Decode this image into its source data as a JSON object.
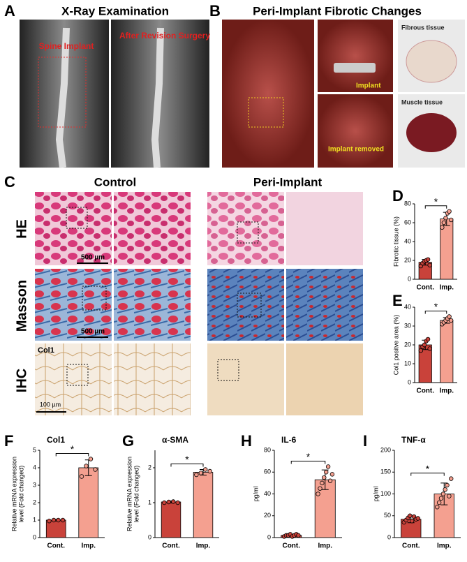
{
  "panels": {
    "A": {
      "letter": "A",
      "title": "X-Ray Examination",
      "labels": [
        "Spine Implant",
        "After Revision Surgery"
      ]
    },
    "B": {
      "letter": "B",
      "title": "Peri-Implant Fibrotic Changes",
      "labels": [
        "Implant",
        "Implant removed",
        "Fibrous tissue",
        "Muscle tissue"
      ]
    },
    "C": {
      "letter": "C",
      "columns": [
        "Control",
        "Peri-Implant"
      ],
      "rows": [
        "HE",
        "Masson",
        "IHC"
      ],
      "scale_bars": [
        "500 µm",
        "500 µm",
        "100 µm"
      ],
      "stain": "Col1"
    }
  },
  "chart_data": [
    {
      "type": "bar",
      "panel": "D",
      "ylabel": "Fibrotic tissue (%)",
      "categories": [
        "Cont.",
        "Imp."
      ],
      "values": [
        18,
        64
      ],
      "errors": [
        3,
        7
      ],
      "points": [
        [
          14,
          17,
          19,
          20,
          21,
          15
        ],
        [
          55,
          60,
          65,
          70,
          72,
          63
        ]
      ],
      "colors": [
        "#c9423a",
        "#f4a090"
      ],
      "ylim": [
        0,
        80
      ],
      "yticks": [
        0,
        20,
        40,
        60,
        80
      ],
      "annotation": "*"
    },
    {
      "type": "bar",
      "panel": "E",
      "ylabel": "Col1 positve area (%)",
      "categories": [
        "Cont.",
        "Imp."
      ],
      "values": [
        20,
        33
      ],
      "errors": [
        2.5,
        1.5
      ],
      "points": [
        [
          17,
          19,
          20,
          22,
          23,
          18
        ],
        [
          31,
          32,
          33,
          34,
          35,
          33
        ]
      ],
      "colors": [
        "#c9423a",
        "#f4a090"
      ],
      "ylim": [
        0,
        40
      ],
      "yticks": [
        0,
        10,
        20,
        30,
        40
      ],
      "annotation": "*"
    },
    {
      "type": "bar",
      "panel": "F",
      "title": "Col1",
      "ylabel": [
        "Relative mRNA expression",
        "level (Fold changed)"
      ],
      "categories": [
        "Cont.",
        "Imp."
      ],
      "values": [
        1,
        4
      ],
      "errors": [
        0.05,
        0.45
      ],
      "points": [
        [
          0.95,
          1.0,
          1.0,
          1.0
        ],
        [
          3.5,
          4.1,
          4.5,
          3.9
        ]
      ],
      "colors": [
        "#c9423a",
        "#f4a090"
      ],
      "ylim": [
        0,
        5
      ],
      "yticks": [
        0,
        1,
        2,
        3,
        4,
        5
      ],
      "annotation": "*"
    },
    {
      "type": "bar",
      "panel": "G",
      "title": "α-SMA",
      "ylabel": [
        "Relative mRNA expression",
        "level (Fold changed)"
      ],
      "categories": [
        "Cont.",
        "Imp."
      ],
      "values": [
        1.02,
        1.87
      ],
      "errors": [
        0.03,
        0.08
      ],
      "points": [
        [
          1.0,
          1.02,
          1.03,
          1.0
        ],
        [
          1.8,
          1.85,
          1.95,
          1.9
        ]
      ],
      "colors": [
        "#c9423a",
        "#f4a090"
      ],
      "ylim": [
        0,
        2.5
      ],
      "yticks": [
        0,
        1,
        2
      ],
      "annotation": "*"
    },
    {
      "type": "bar",
      "panel": "H",
      "title": "IL-6",
      "ylabel": "pg/ml",
      "categories": [
        "Cont.",
        "Imp."
      ],
      "values": [
        2,
        53
      ],
      "errors": [
        1,
        9
      ],
      "points": [
        [
          1,
          2,
          2,
          3,
          1,
          2,
          3,
          2
        ],
        [
          40,
          45,
          50,
          55,
          60,
          65,
          52,
          58
        ]
      ],
      "colors": [
        "#c9423a",
        "#f4a090"
      ],
      "ylim": [
        0,
        80
      ],
      "yticks": [
        0,
        20,
        40,
        60,
        80
      ],
      "annotation": "*"
    },
    {
      "type": "bar",
      "panel": "I",
      "title": "TNF-α",
      "ylabel": "pg/ml",
      "categories": [
        "Cont.",
        "Imp."
      ],
      "values": [
        42,
        100
      ],
      "errors": [
        8,
        25
      ],
      "points": [
        [
          35,
          40,
          45,
          50,
          38,
          48,
          42,
          44
        ],
        [
          70,
          80,
          90,
          100,
          110,
          120,
          95,
          135
        ]
      ],
      "colors": [
        "#c9423a",
        "#f4a090"
      ],
      "ylim": [
        0,
        200
      ],
      "yticks": [
        0,
        50,
        100,
        150,
        200
      ],
      "annotation": "*"
    }
  ]
}
